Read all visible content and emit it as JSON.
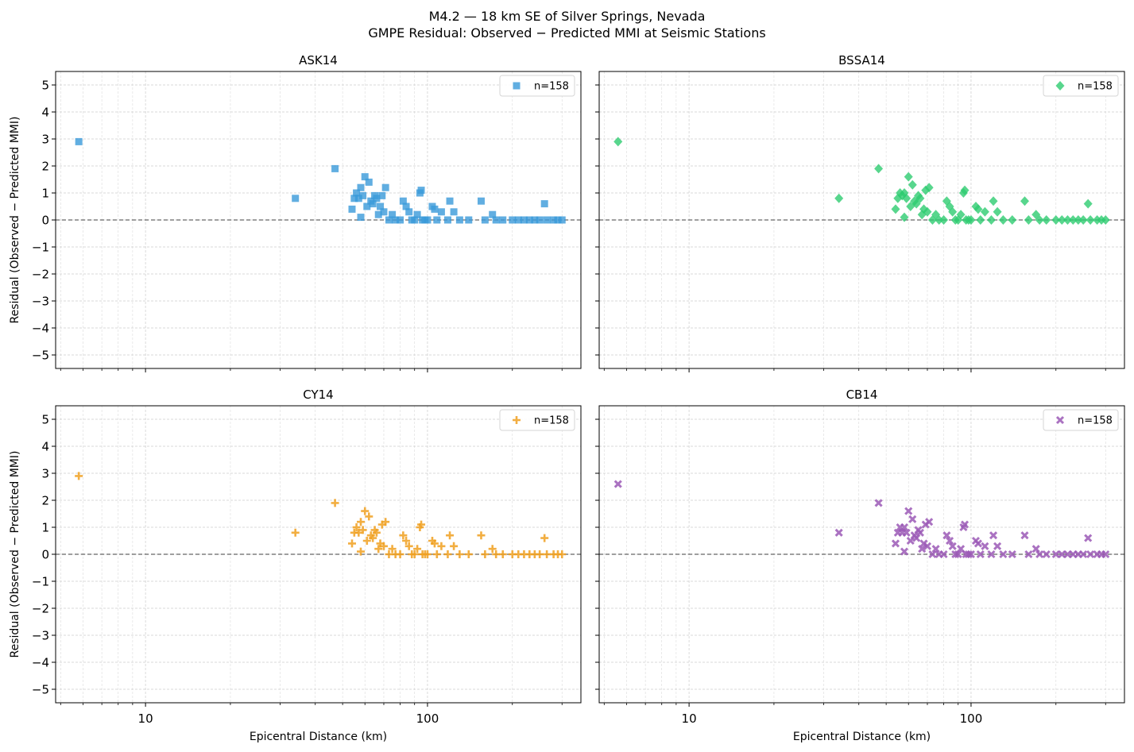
{
  "figure": {
    "title_line1": "M4.2 — 18 km SE of Silver Springs, Nevada",
    "title_line2": "GMPE Residual: Observed − Predicted MMI at Seismic Stations"
  },
  "chart_data": [
    {
      "type": "scatter",
      "title": "ASK14",
      "xlabel": "",
      "ylabel": "Residual (Observed − Predicted MMI)",
      "xscale": "log",
      "xlim": [
        4.8,
        350
      ],
      "ylim": [
        -5.5,
        5.5
      ],
      "xticks": [
        "10",
        "100"
      ],
      "yticks": [
        "5",
        "4",
        "3",
        "2",
        "1",
        "0",
        "−1",
        "−2",
        "−3",
        "−4",
        "−5"
      ],
      "grid": true,
      "reference_line_y": 0,
      "legend": {
        "label": "n=158",
        "placement": "upper right"
      },
      "marker": "square",
      "color": "#3a9ad9",
      "series": [
        {
          "x": [
            5.8,
            34,
            47,
            54,
            55,
            56,
            57,
            58,
            58,
            59,
            60,
            61,
            62,
            63,
            64,
            65,
            66,
            67,
            68,
            69,
            70,
            71,
            73,
            75,
            77,
            80,
            82,
            84,
            86,
            88,
            90,
            92,
            94,
            95,
            96,
            98,
            100,
            104,
            106,
            108,
            112,
            118,
            120,
            124,
            130,
            140,
            155,
            160,
            170,
            175,
            185,
            200,
            210,
            220,
            230,
            240,
            250,
            260,
            265,
            280,
            290,
            300
          ],
          "y": [
            2.9,
            0.8,
            1.9,
            0.4,
            0.8,
            1.0,
            0.8,
            0.1,
            1.2,
            0.9,
            1.6,
            0.5,
            1.4,
            0.7,
            0.6,
            0.9,
            0.8,
            0.2,
            0.5,
            0.9,
            0.3,
            1.2,
            0.0,
            0.2,
            0.0,
            0.0,
            0.7,
            0.5,
            0.3,
            0.0,
            0.0,
            0.2,
            1.0,
            1.1,
            0.0,
            0.0,
            0.0,
            0.5,
            0.4,
            0.0,
            0.3,
            0.0,
            0.7,
            0.3,
            0.0,
            0.0,
            0.7,
            0.0,
            0.2,
            0.0,
            0.0,
            0.0,
            0.0,
            0.0,
            0.0,
            0.0,
            0.0,
            0.6,
            0.0,
            0.0,
            0.0,
            0.0
          ]
        }
      ]
    },
    {
      "type": "scatter",
      "title": "BSSA14",
      "xlabel": "",
      "ylabel": "",
      "xscale": "log",
      "xlim": [
        4.8,
        350
      ],
      "ylim": [
        -5.5,
        5.5
      ],
      "xticks": [
        "10",
        "100"
      ],
      "grid": true,
      "reference_line_y": 0,
      "legend": {
        "label": "n=158",
        "placement": "upper right"
      },
      "marker": "diamond",
      "color": "#2ecc71",
      "series": [
        {
          "x": [
            5.6,
            34,
            47,
            54,
            55,
            56,
            57,
            58,
            58,
            59,
            60,
            61,
            62,
            63,
            64,
            65,
            66,
            67,
            68,
            69,
            70,
            71,
            73,
            75,
            77,
            80,
            82,
            84,
            86,
            88,
            90,
            92,
            94,
            95,
            96,
            98,
            100,
            104,
            106,
            108,
            112,
            118,
            120,
            124,
            130,
            140,
            155,
            160,
            170,
            175,
            185,
            200,
            210,
            220,
            230,
            240,
            250,
            260,
            265,
            280,
            290,
            300
          ],
          "y": [
            2.9,
            0.8,
            1.9,
            0.4,
            0.8,
            1.0,
            0.9,
            0.1,
            1.0,
            0.8,
            1.6,
            0.5,
            1.3,
            0.7,
            0.6,
            0.9,
            0.8,
            0.2,
            0.4,
            1.1,
            0.3,
            1.2,
            0.0,
            0.2,
            0.0,
            0.0,
            0.7,
            0.5,
            0.3,
            0.0,
            0.0,
            0.2,
            1.0,
            1.1,
            0.0,
            0.0,
            0.0,
            0.5,
            0.4,
            0.0,
            0.3,
            0.0,
            0.7,
            0.3,
            0.0,
            0.0,
            0.7,
            0.0,
            0.2,
            0.0,
            0.0,
            0.0,
            0.0,
            0.0,
            0.0,
            0.0,
            0.0,
            0.6,
            0.0,
            0.0,
            0.0,
            0.0
          ]
        }
      ]
    },
    {
      "type": "scatter",
      "title": "CY14",
      "xlabel": "Epicentral Distance (km)",
      "ylabel": "Residual (Observed − Predicted MMI)",
      "xscale": "log",
      "xlim": [
        4.8,
        350
      ],
      "ylim": [
        -5.5,
        5.5
      ],
      "xticks": [
        "10",
        "100"
      ],
      "yticks": [
        "5",
        "4",
        "3",
        "2",
        "1",
        "0",
        "−1",
        "−2",
        "−3",
        "−4",
        "−5"
      ],
      "grid": true,
      "reference_line_y": 0,
      "legend": {
        "label": "n=158",
        "placement": "upper right"
      },
      "marker": "plus",
      "color": "#f0a020",
      "series": [
        {
          "x": [
            5.8,
            34,
            47,
            54,
            55,
            56,
            57,
            58,
            58,
            59,
            60,
            61,
            62,
            63,
            64,
            65,
            66,
            67,
            68,
            69,
            70,
            71,
            73,
            75,
            77,
            80,
            82,
            84,
            86,
            88,
            90,
            92,
            94,
            95,
            96,
            98,
            100,
            104,
            106,
            108,
            112,
            118,
            120,
            124,
            130,
            140,
            155,
            160,
            170,
            175,
            185,
            200,
            210,
            220,
            230,
            240,
            250,
            260,
            265,
            280,
            290,
            300
          ],
          "y": [
            2.9,
            0.8,
            1.9,
            0.4,
            0.8,
            1.0,
            0.8,
            0.1,
            1.2,
            0.9,
            1.6,
            0.5,
            1.4,
            0.7,
            0.6,
            0.9,
            0.8,
            0.2,
            0.4,
            1.1,
            0.3,
            1.2,
            0.0,
            0.2,
            0.0,
            0.0,
            0.7,
            0.5,
            0.3,
            0.0,
            0.0,
            0.2,
            1.0,
            1.1,
            0.0,
            0.0,
            0.0,
            0.5,
            0.4,
            0.0,
            0.3,
            0.0,
            0.7,
            0.3,
            0.0,
            0.0,
            0.7,
            0.0,
            0.2,
            0.0,
            0.0,
            0.0,
            0.0,
            0.0,
            0.0,
            0.0,
            0.0,
            0.6,
            0.0,
            0.0,
            0.0,
            0.0
          ]
        }
      ]
    },
    {
      "type": "scatter",
      "title": "CB14",
      "xlabel": "Epicentral Distance (km)",
      "ylabel": "",
      "xscale": "log",
      "xlim": [
        4.8,
        350
      ],
      "ylim": [
        -5.5,
        5.5
      ],
      "xticks": [
        "10",
        "100"
      ],
      "grid": true,
      "reference_line_y": 0,
      "legend": {
        "label": "n=158",
        "placement": "upper right"
      },
      "marker": "x",
      "color": "#9b59b6",
      "series": [
        {
          "x": [
            5.6,
            34,
            47,
            54,
            55,
            56,
            57,
            58,
            58,
            59,
            60,
            61,
            62,
            63,
            64,
            65,
            66,
            67,
            68,
            69,
            70,
            71,
            73,
            75,
            77,
            80,
            82,
            84,
            86,
            88,
            90,
            92,
            94,
            95,
            96,
            98,
            100,
            104,
            106,
            108,
            112,
            118,
            120,
            124,
            130,
            140,
            155,
            160,
            170,
            175,
            185,
            200,
            210,
            220,
            230,
            240,
            250,
            260,
            265,
            280,
            290,
            300
          ],
          "y": [
            2.6,
            0.8,
            1.9,
            0.4,
            0.8,
            1.0,
            0.8,
            0.1,
            1.0,
            0.8,
            1.6,
            0.5,
            1.3,
            0.7,
            0.6,
            0.9,
            0.8,
            0.2,
            0.4,
            1.1,
            0.3,
            1.2,
            0.0,
            0.2,
            0.0,
            0.0,
            0.7,
            0.5,
            0.3,
            0.0,
            0.0,
            0.2,
            1.0,
            1.1,
            0.0,
            0.0,
            0.0,
            0.5,
            0.4,
            0.0,
            0.3,
            0.0,
            0.7,
            0.3,
            0.0,
            0.0,
            0.7,
            0.0,
            0.2,
            0.0,
            0.0,
            0.0,
            0.0,
            0.0,
            0.0,
            0.0,
            0.0,
            0.6,
            0.0,
            0.0,
            0.0,
            0.0
          ]
        }
      ]
    }
  ]
}
